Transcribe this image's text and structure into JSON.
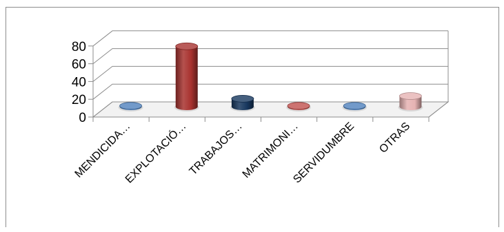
{
  "chart_data": {
    "type": "bar",
    "style": "3d-cylinder",
    "title": "",
    "xlabel": "",
    "ylabel": "",
    "ylim": [
      0,
      80
    ],
    "yticks": [
      0,
      20,
      40,
      60,
      80
    ],
    "grid": true,
    "legend": "none",
    "categories": [
      "MENDICIDA…",
      "EXPLOTACIÓ…",
      "TRABAJOS…",
      "MATRIMONI…",
      "SERVIDUMBRE",
      "OTRAS"
    ],
    "values": [
      1,
      68,
      9,
      1,
      1,
      12
    ],
    "colors": [
      "#4f81bd",
      "#a8322f",
      "#17375e",
      "#c0504d",
      "#4f81bd",
      "#e6b3b3"
    ]
  }
}
